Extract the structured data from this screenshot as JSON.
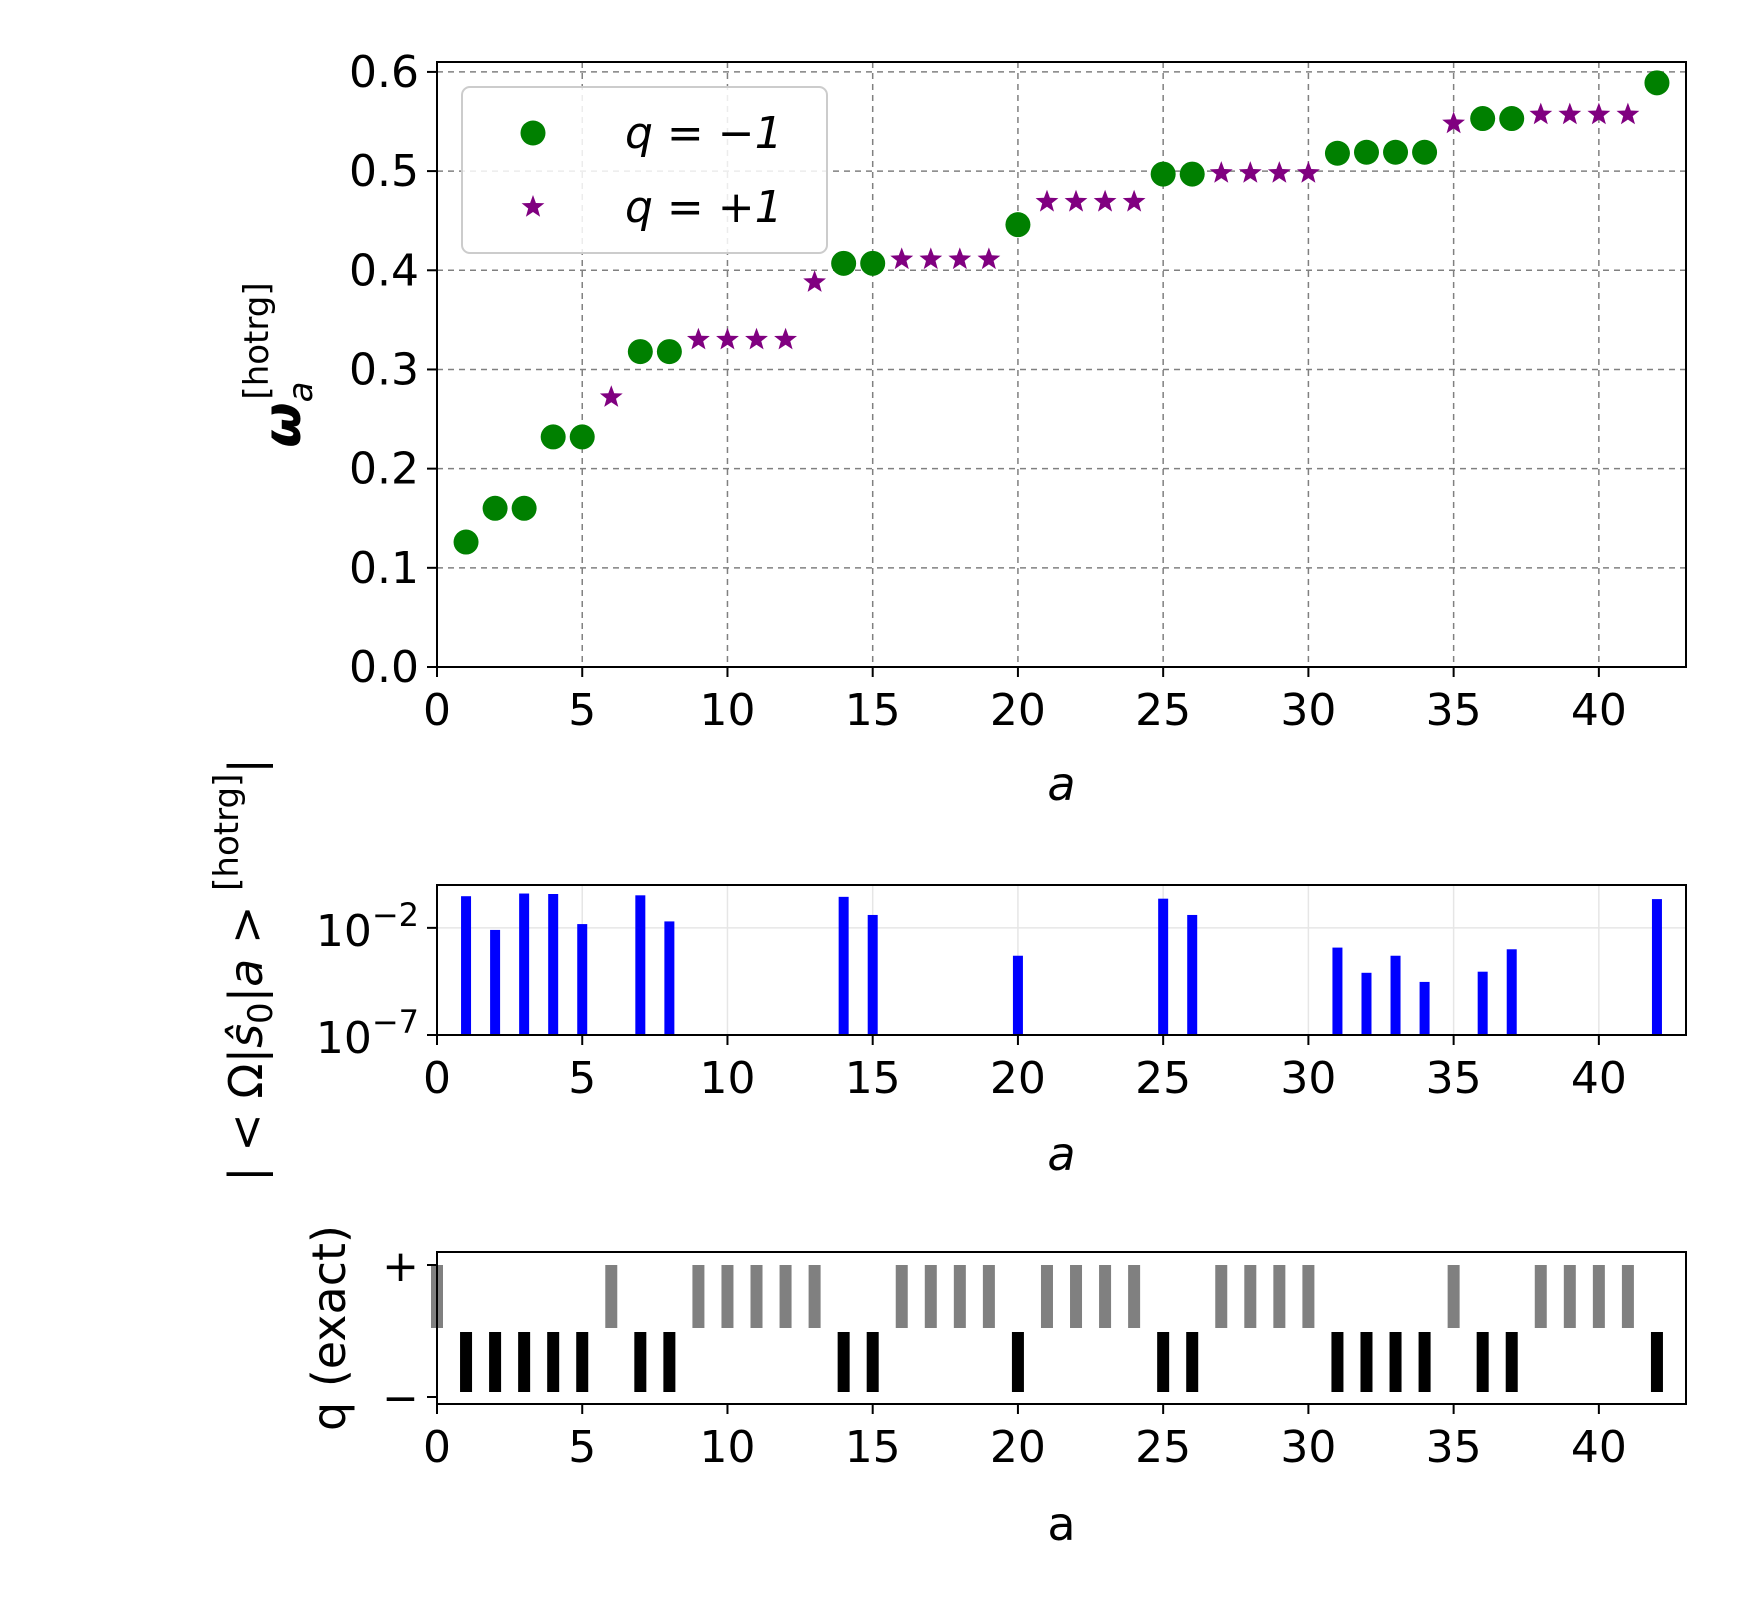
{
  "colors": {
    "q_minus": "#008000",
    "q_plus": "#800080",
    "overlap_bars": "#0000ff",
    "exact_plus": "#808080",
    "exact_minus": "#000000",
    "grid": "#808080"
  },
  "chart_data": [
    {
      "type": "scatter",
      "xlabel": "a",
      "ylabel": "ω_a^[hotrg]",
      "xlim": [
        0,
        43
      ],
      "ylim": [
        0.0,
        0.61
      ],
      "xticks": [
        "0",
        "5",
        "10",
        "15",
        "20",
        "25",
        "30",
        "35",
        "40"
      ],
      "yticks": [
        "0.0",
        "0.1",
        "0.2",
        "0.3",
        "0.4",
        "0.5",
        "0.6"
      ],
      "grid": true,
      "legend_position": "top-left",
      "series": [
        {
          "name": "q = −1",
          "marker": "circle",
          "color": "#008000",
          "points": [
            [
              1,
              0.126
            ],
            [
              2,
              0.16
            ],
            [
              3,
              0.16
            ],
            [
              4,
              0.232
            ],
            [
              5,
              0.232
            ],
            [
              7,
              0.318
            ],
            [
              8,
              0.318
            ],
            [
              14,
              0.407
            ],
            [
              15,
              0.407
            ],
            [
              20,
              0.446
            ],
            [
              25,
              0.497
            ],
            [
              26,
              0.497
            ],
            [
              31,
              0.518
            ],
            [
              32,
              0.519
            ],
            [
              33,
              0.519
            ],
            [
              34,
              0.519
            ],
            [
              36,
              0.553
            ],
            [
              37,
              0.553
            ],
            [
              42,
              0.589
            ]
          ]
        },
        {
          "name": "q = +1",
          "marker": "star",
          "color": "#800080",
          "points": [
            [
              6,
              0.272
            ],
            [
              9,
              0.33
            ],
            [
              10,
              0.33
            ],
            [
              11,
              0.33
            ],
            [
              12,
              0.33
            ],
            [
              13,
              0.388
            ],
            [
              16,
              0.411
            ],
            [
              17,
              0.411
            ],
            [
              18,
              0.411
            ],
            [
              19,
              0.411
            ],
            [
              21,
              0.469
            ],
            [
              22,
              0.469
            ],
            [
              23,
              0.469
            ],
            [
              24,
              0.469
            ],
            [
              27,
              0.498
            ],
            [
              28,
              0.498
            ],
            [
              29,
              0.498
            ],
            [
              30,
              0.498
            ],
            [
              35,
              0.548
            ],
            [
              38,
              0.557
            ],
            [
              39,
              0.557
            ],
            [
              40,
              0.557
            ],
            [
              41,
              0.557
            ]
          ]
        }
      ]
    },
    {
      "type": "bar",
      "yscale": "log",
      "xlabel": "a",
      "ylabel": "|<Ω|ŝ0|a>^[hotrg]|",
      "xlim": [
        0,
        43
      ],
      "ylim": [
        1e-07,
        1.0
      ],
      "xticks": [
        "0",
        "5",
        "10",
        "15",
        "20",
        "25",
        "30",
        "35",
        "40"
      ],
      "yticks": [
        {
          "base": "10",
          "exp": "−2",
          "value": 0.01
        },
        {
          "base": "10",
          "exp": "−7",
          "value": 1e-07
        }
      ],
      "grid": true,
      "color": "#0000ff",
      "bars": [
        [
          1,
          0.3
        ],
        [
          2,
          0.008
        ],
        [
          3,
          0.4
        ],
        [
          4,
          0.38
        ],
        [
          5,
          0.015
        ],
        [
          7,
          0.33
        ],
        [
          8,
          0.02
        ],
        [
          14,
          0.28
        ],
        [
          15,
          0.04
        ],
        [
          20,
          0.0005
        ],
        [
          25,
          0.23
        ],
        [
          26,
          0.04
        ],
        [
          31,
          0.0012
        ],
        [
          32,
          8e-05
        ],
        [
          33,
          0.0005
        ],
        [
          34,
          3e-05
        ],
        [
          36,
          9e-05
        ],
        [
          37,
          0.001
        ],
        [
          42,
          0.22
        ]
      ]
    },
    {
      "type": "bar",
      "xlabel": "a",
      "ylabel": "q (exact)",
      "xlim": [
        0,
        43
      ],
      "xticks": [
        "0",
        "5",
        "10",
        "15",
        "20",
        "25",
        "30",
        "35",
        "40"
      ],
      "yticks": [
        "+",
        "−"
      ],
      "grid": false,
      "plus_color": "#808080",
      "minus_color": "#000000",
      "plus_states": [
        0,
        6,
        9,
        10,
        11,
        12,
        13,
        16,
        17,
        18,
        19,
        21,
        22,
        23,
        24,
        27,
        28,
        29,
        30,
        35,
        38,
        39,
        40,
        41
      ],
      "minus_states": [
        1,
        2,
        3,
        4,
        5,
        7,
        8,
        14,
        15,
        20,
        25,
        26,
        31,
        32,
        33,
        34,
        36,
        37,
        42
      ]
    }
  ]
}
